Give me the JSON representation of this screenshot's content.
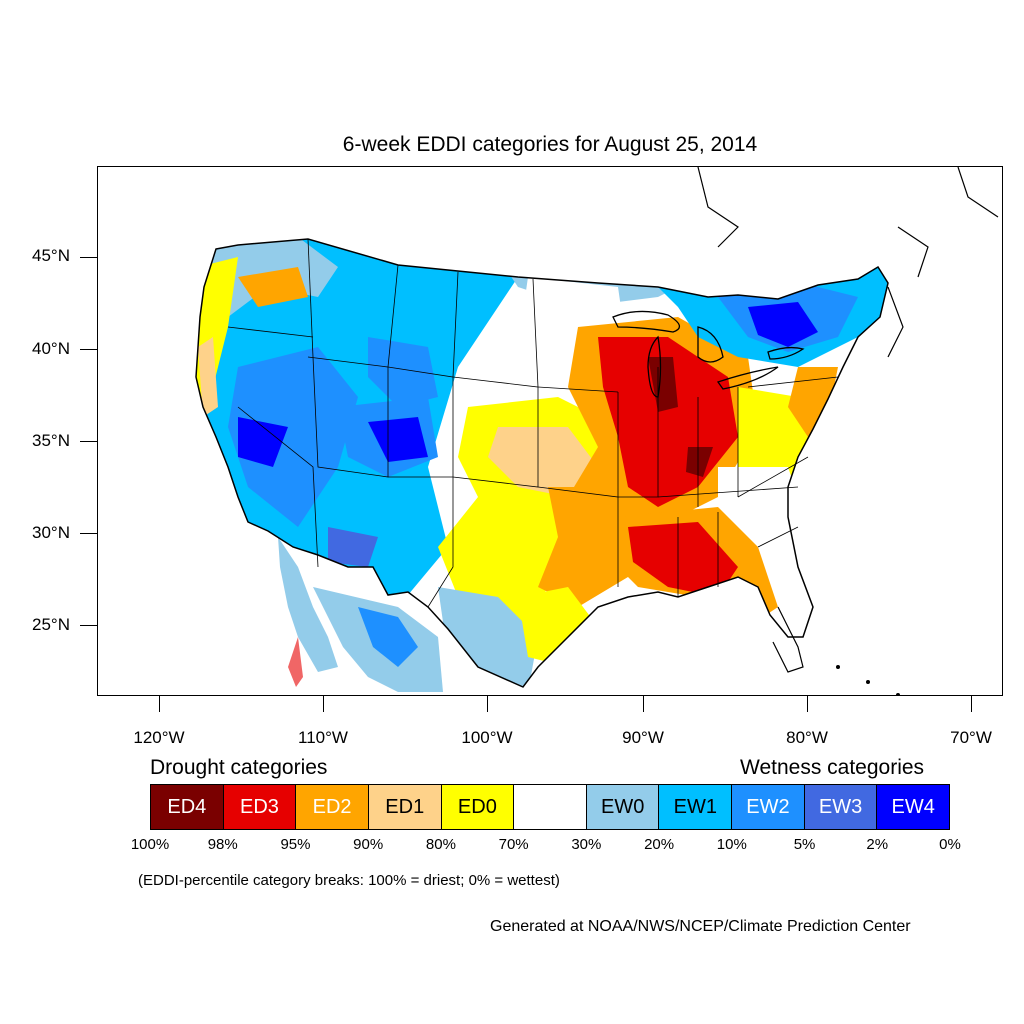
{
  "title": "6-week EDDI categories for August 25, 2014",
  "lat_labels": [
    "45°N",
    "40°N",
    "35°N",
    "30°N",
    "25°N"
  ],
  "lon_labels": [
    "120°W",
    "110°W",
    "100°W",
    "90°W",
    "80°W",
    "70°W"
  ],
  "legend": {
    "drought_heading": "Drought categories",
    "wetness_heading": "Wetness categories",
    "categories": [
      {
        "label": "ED4",
        "color": "#7a0000",
        "text_color": "#ffffff"
      },
      {
        "label": "ED3",
        "color": "#e60000",
        "text_color": "#ffffff"
      },
      {
        "label": "ED2",
        "color": "#ffa500",
        "text_color": "#ffffff"
      },
      {
        "label": "ED1",
        "color": "#fed28a",
        "text_color": "#000000"
      },
      {
        "label": "ED0",
        "color": "#ffff00",
        "text_color": "#000000"
      },
      {
        "label": "",
        "color": "#ffffff",
        "text_color": "#000000"
      },
      {
        "label": "EW0",
        "color": "#93ccea",
        "text_color": "#000000"
      },
      {
        "label": "EW1",
        "color": "#00bfff",
        "text_color": "#000000"
      },
      {
        "label": "EW2",
        "color": "#1e90ff",
        "text_color": "#ffffff"
      },
      {
        "label": "EW3",
        "color": "#4169e1",
        "text_color": "#ffffff"
      },
      {
        "label": "EW4",
        "color": "#0000ff",
        "text_color": "#ffffff"
      }
    ],
    "percent_breaks": [
      "100%",
      "98%",
      "95%",
      "90%",
      "80%",
      "70%",
      "30%",
      "20%",
      "10%",
      "5%",
      "2%",
      "0%"
    ],
    "note": "(EDDI-percentile category breaks: 100% = driest; 0% = wettest)"
  },
  "credit": "Generated at NOAA/NWS/NCEP/Climate Prediction Center"
}
